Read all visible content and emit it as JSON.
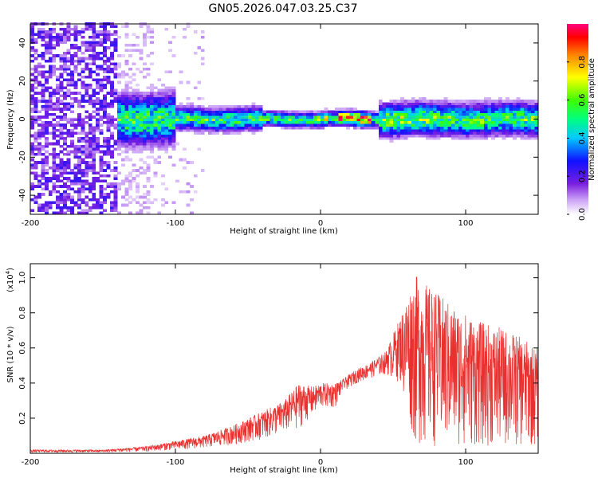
{
  "title": "GN05.2026.047.03.25.C37",
  "chart_data": [
    {
      "type": "heatmap",
      "panel": "spectrogram",
      "xlabel": "Height of straight line (km)",
      "ylabel": "Frequency (Hz)",
      "xlim": [
        -200,
        150
      ],
      "ylim": [
        -50,
        50
      ],
      "xticks": [
        -200,
        -100,
        0,
        100
      ],
      "xtick_labels": [
        "-200",
        "-100",
        "0",
        "100"
      ],
      "yticks": [
        -40,
        -20,
        0,
        20,
        40
      ],
      "ytick_labels": [
        "-40",
        "-20",
        "0",
        "20",
        "40"
      ],
      "colorbar": {
        "label": "Normalized spectral amplitude",
        "range": [
          0,
          1
        ],
        "ticks": [
          0.0,
          0.2,
          0.4,
          0.6,
          0.8
        ],
        "tick_labels": [
          "0.0",
          "0.2",
          "0.4",
          "0.6",
          "0.8"
        ],
        "colors": [
          "#ffffff",
          "#7a1fe0",
          "#1010ff",
          "#00c8ff",
          "#00ff80",
          "#40ff00",
          "#ffff00",
          "#ff8000",
          "#ff0000",
          "#ff0080"
        ]
      },
      "regions": [
        {
          "name": "broadband noise",
          "x": [
            -200,
            -140
          ],
          "f": [
            -50,
            50
          ],
          "amplitude": 0.2
        },
        {
          "name": "sparse noise",
          "x": [
            -140,
            -80
          ],
          "f": [
            -50,
            50
          ],
          "amplitude": 0.05
        },
        {
          "name": "narrowband signal",
          "x": [
            -140,
            150
          ],
          "center_hz": 0,
          "halfwidth_hz": [
            15,
            3,
            8
          ],
          "amplitude_range": [
            0.2,
            0.85
          ]
        }
      ]
    },
    {
      "type": "line",
      "panel": "snr",
      "xlabel": "Height of straight line (km)",
      "ylabel": "SNR (10 * v/v)",
      "scale_label": "(x10",
      "scale_exponent": "4",
      "xlim": [
        -200,
        150
      ],
      "ylim": [
        0,
        1.08
      ],
      "xticks": [
        -200,
        -100,
        0,
        100
      ],
      "xtick_labels": [
        "-200",
        "-100",
        "0",
        "100"
      ],
      "yticks": [
        0.2,
        0.4,
        0.6,
        0.8,
        1.0
      ],
      "ytick_labels": [
        "0.2",
        "0.4",
        "0.6",
        "0.8",
        "1.0"
      ],
      "series": [
        {
          "name": "SNR",
          "color": "#e8302e",
          "envelope": {
            "x": [
              -200,
              -150,
              -120,
              -100,
              -80,
              -60,
              -40,
              -25,
              -15,
              -5,
              0,
              10,
              15,
              25,
              35,
              45,
              55,
              65,
              75,
              90,
              110,
              130,
              150
            ],
            "low": [
              0.005,
              0.005,
              0.01,
              0.02,
              0.03,
              0.05,
              0.08,
              0.12,
              0.14,
              0.22,
              0.26,
              0.26,
              0.35,
              0.4,
              0.43,
              0.45,
              0.4,
              0.05,
              0.04,
              0.04,
              0.04,
              0.04,
              0.04
            ],
            "high": [
              0.02,
              0.02,
              0.04,
              0.07,
              0.1,
              0.16,
              0.24,
              0.3,
              0.4,
              0.38,
              0.4,
              0.4,
              0.42,
              0.48,
              0.52,
              0.58,
              0.78,
              1.02,
              0.95,
              0.85,
              0.75,
              0.7,
              0.6
            ]
          }
        }
      ]
    }
  ]
}
